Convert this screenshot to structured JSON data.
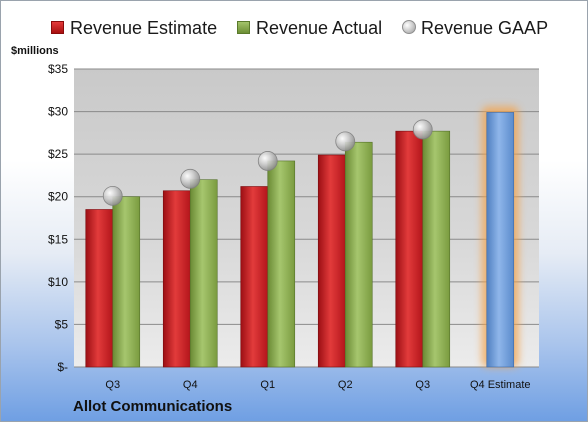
{
  "legend": {
    "estimate": "Revenue Estimate",
    "actual": "Revenue Actual",
    "gaap": "Revenue GAAP"
  },
  "units_label": "$millions",
  "company": "Allot Communications",
  "colors": {
    "estimate": "#c8161d",
    "actual": "#8cae4f",
    "forecast": "#6f9fdb",
    "forecast_glow": "#f4a24a",
    "gaap_marker": "#b8b8b8"
  },
  "chart_data": {
    "type": "bar",
    "categories": [
      "Q3",
      "Q4",
      "Q1",
      "Q2",
      "Q3",
      "Q4 Estimate"
    ],
    "series": [
      {
        "name": "Revenue Estimate",
        "values": [
          18.5,
          20.7,
          21.2,
          24.9,
          27.7,
          null
        ]
      },
      {
        "name": "Revenue Actual",
        "values": [
          20.0,
          22.0,
          24.2,
          26.4,
          27.7,
          null
        ]
      },
      {
        "name": "Revenue GAAP",
        "values": [
          20.1,
          22.1,
          24.2,
          26.5,
          27.9,
          null
        ]
      }
    ],
    "forecast": {
      "category": "Q4 Estimate",
      "value": 29.9
    },
    "ylim": [
      0,
      35
    ],
    "yticks": [
      {
        "value": 0,
        "label": "$-"
      },
      {
        "value": 5,
        "label": "$5"
      },
      {
        "value": 10,
        "label": "$10"
      },
      {
        "value": 15,
        "label": "$15"
      },
      {
        "value": 20,
        "label": "$20"
      },
      {
        "value": 25,
        "label": "$25"
      },
      {
        "value": 30,
        "label": "$30"
      },
      {
        "value": 35,
        "label": "$35"
      }
    ],
    "grid": true,
    "legend_position": "top"
  }
}
